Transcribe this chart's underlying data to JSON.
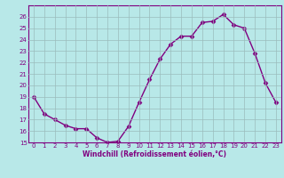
{
  "x": [
    0,
    1,
    2,
    3,
    4,
    5,
    6,
    7,
    8,
    9,
    10,
    11,
    12,
    13,
    14,
    15,
    16,
    17,
    18,
    19,
    20,
    21,
    22,
    23
  ],
  "y": [
    19.0,
    17.5,
    17.0,
    16.5,
    16.2,
    16.2,
    15.4,
    15.0,
    15.1,
    16.4,
    18.5,
    20.5,
    22.3,
    23.6,
    24.3,
    24.3,
    25.5,
    25.6,
    26.2,
    25.3,
    25.0,
    22.8,
    20.2,
    18.5
  ],
  "color": "#800080",
  "bg_color": "#b8e8e8",
  "grid_color": "#9bbcbc",
  "xlabel": "Windchill (Refroidissement éolien,°C)",
  "ylim": [
    15,
    27
  ],
  "xlim": [
    -0.5,
    23.5
  ],
  "xticks": [
    0,
    1,
    2,
    3,
    4,
    5,
    6,
    7,
    8,
    9,
    10,
    11,
    12,
    13,
    14,
    15,
    16,
    17,
    18,
    19,
    20,
    21,
    22,
    23
  ],
  "yticks": [
    15,
    16,
    17,
    18,
    19,
    20,
    21,
    22,
    23,
    24,
    25,
    26
  ],
  "marker": "D",
  "markersize": 2.5,
  "linewidth": 1.0,
  "tick_fontsize": 5.0,
  "xlabel_fontsize": 5.5
}
